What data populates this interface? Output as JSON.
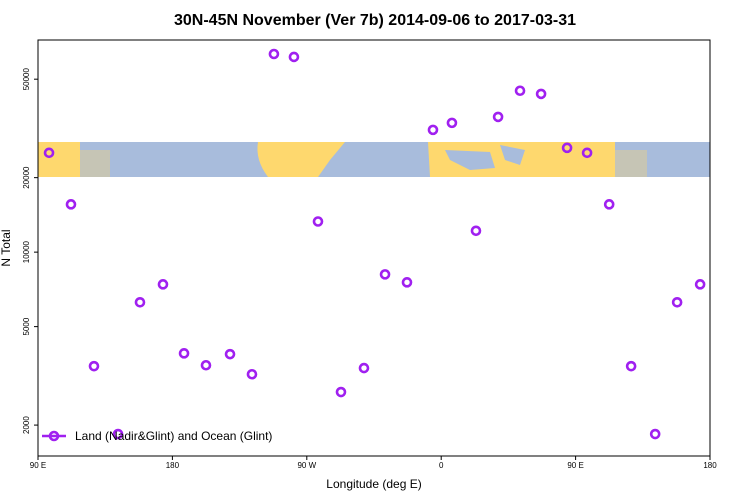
{
  "chart_data": {
    "type": "scatter",
    "title": "30N-45N November (Ver 7b)   2014-09-06 to 2017-03-31",
    "x_label": "Longitude (deg E)",
    "y_label": "N Total",
    "log_y": true,
    "legend_position": "bottom-left",
    "xlim": [
      90,
      540
    ],
    "xticks": [
      {
        "value": 90,
        "label": "90 E"
      },
      180,
      {
        "value": 270,
        "label": "90 W"
      },
      {
        "value": 360,
        "label": "0"
      },
      {
        "value": 450,
        "label": "90 E"
      },
      {
        "value": 540,
        "label": "180"
      }
    ],
    "ylim": [
      1500,
      72000
    ],
    "yticks": [
      2000,
      5000,
      10000,
      20000,
      50000
    ],
    "series": [
      {
        "name": "Land (Nadir&Glint) and Ocean (Glint)",
        "color": "#a020f0",
        "x": [
          97.4,
          112.1,
          127.5,
          143.6,
          158.3,
          173.7,
          187.8,
          202.5,
          218.6,
          233.3,
          248,
          261.4,
          277.5,
          292.9,
          308.3,
          322.4,
          337.1,
          354.5,
          367.2,
          383.3,
          398.1,
          412.8,
          426.9,
          444.3,
          457.7,
          472.5,
          487.2,
          503.3,
          518,
          533.4
        ],
        "values": [
          25200,
          15600,
          3460,
          1840,
          6270,
          7410,
          3900,
          3490,
          3870,
          3210,
          63200,
          61500,
          13300,
          2720,
          3400,
          8130,
          7550,
          31200,
          33300,
          12200,
          35200,
          44900,
          43600,
          26400,
          25200,
          15600,
          3460,
          1840,
          6270,
          7410
        ]
      }
    ]
  }
}
